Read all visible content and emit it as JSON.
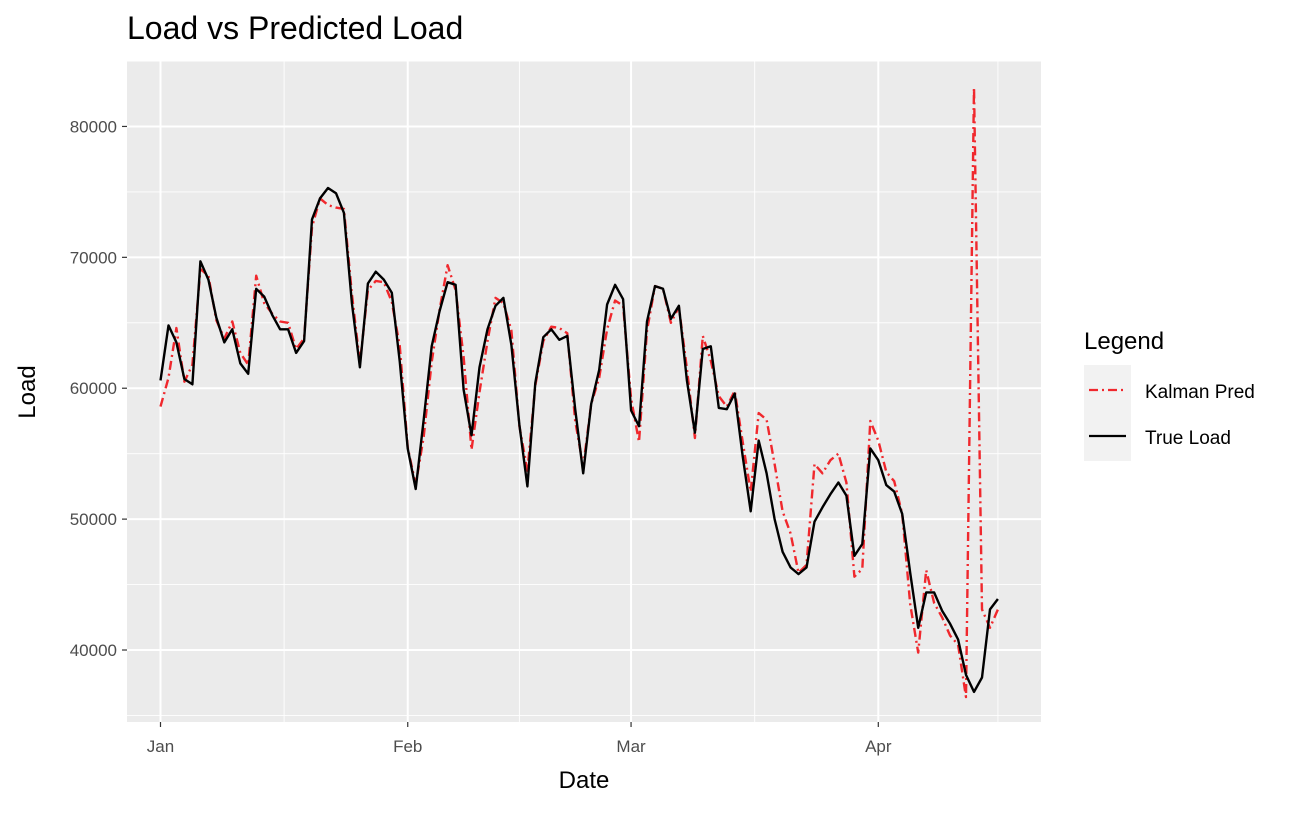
{
  "chart_data": {
    "type": "line",
    "title": "Load vs Predicted Load",
    "xlabel": "Date",
    "ylabel": "Load",
    "x_ticks": [
      "Jan",
      "Feb",
      "Mar",
      "Apr"
    ],
    "y_ticks": [
      40000,
      50000,
      60000,
      70000,
      80000
    ],
    "ylim": [
      34500,
      85000
    ],
    "legend": {
      "title": "Legend",
      "position": "right"
    },
    "grid": true,
    "series": [
      {
        "name": "Kalman Pred",
        "color": "#f0282d",
        "dash": "dashdot",
        "points": [
          [
            0,
            58600
          ],
          [
            1,
            60800
          ],
          [
            2,
            64600
          ],
          [
            3,
            60500
          ],
          [
            4,
            61800
          ],
          [
            5,
            69100
          ],
          [
            6,
            68600
          ],
          [
            7,
            65200
          ],
          [
            8,
            63800
          ],
          [
            9,
            65100
          ],
          [
            10,
            62700
          ],
          [
            11,
            61800
          ],
          [
            12,
            68600
          ],
          [
            13,
            66500
          ],
          [
            14,
            65700
          ],
          [
            15,
            65100
          ],
          [
            16,
            65000
          ],
          [
            17,
            63000
          ],
          [
            18,
            63800
          ],
          [
            19,
            72300
          ],
          [
            20,
            74500
          ],
          [
            21,
            74000
          ],
          [
            22,
            73800
          ],
          [
            23,
            73700
          ],
          [
            24,
            67200
          ],
          [
            25,
            61900
          ],
          [
            26,
            67500
          ],
          [
            27,
            68200
          ],
          [
            28,
            68100
          ],
          [
            29,
            66600
          ],
          [
            30,
            63200
          ],
          [
            31,
            55500
          ],
          [
            32,
            52600
          ],
          [
            33,
            56300
          ],
          [
            34,
            62000
          ],
          [
            35,
            66000
          ],
          [
            36,
            69400
          ],
          [
            37,
            67500
          ],
          [
            38,
            62400
          ],
          [
            39,
            55300
          ],
          [
            40,
            59700
          ],
          [
            41,
            63600
          ],
          [
            42,
            66900
          ],
          [
            43,
            66500
          ],
          [
            44,
            64400
          ],
          [
            45,
            57100
          ],
          [
            46,
            53700
          ],
          [
            47,
            60200
          ],
          [
            48,
            63600
          ],
          [
            49,
            64700
          ],
          [
            50,
            64600
          ],
          [
            51,
            64200
          ],
          [
            52,
            57500
          ],
          [
            53,
            54000
          ],
          [
            54,
            58800
          ],
          [
            55,
            60800
          ],
          [
            56,
            64500
          ],
          [
            57,
            66700
          ],
          [
            58,
            66300
          ],
          [
            59,
            59200
          ],
          [
            60,
            55900
          ],
          [
            61,
            64400
          ],
          [
            62,
            67800
          ],
          [
            63,
            67600
          ],
          [
            64,
            65000
          ],
          [
            65,
            66200
          ],
          [
            66,
            61500
          ],
          [
            67,
            56200
          ],
          [
            68,
            64000
          ],
          [
            69,
            62100
          ],
          [
            70,
            59400
          ],
          [
            71,
            58600
          ],
          [
            72,
            59800
          ],
          [
            73,
            55900
          ],
          [
            74,
            52100
          ],
          [
            75,
            58100
          ],
          [
            76,
            57600
          ],
          [
            77,
            54200
          ],
          [
            78,
            50600
          ],
          [
            79,
            48900
          ],
          [
            80,
            45900
          ],
          [
            81,
            46500
          ],
          [
            82,
            54200
          ],
          [
            83,
            53500
          ],
          [
            84,
            54500
          ],
          [
            85,
            55000
          ],
          [
            86,
            52800
          ],
          [
            87,
            45600
          ],
          [
            88,
            46200
          ],
          [
            89,
            57500
          ],
          [
            90,
            56000
          ],
          [
            91,
            53600
          ],
          [
            92,
            52900
          ],
          [
            93,
            50400
          ],
          [
            94,
            43500
          ],
          [
            95,
            39800
          ],
          [
            96,
            46100
          ],
          [
            97,
            43600
          ],
          [
            98,
            42500
          ],
          [
            99,
            41100
          ],
          [
            100,
            40400
          ],
          [
            101,
            36400
          ],
          [
            102,
            83000
          ],
          [
            103,
            43100
          ],
          [
            104,
            41700
          ],
          [
            105,
            43100
          ]
        ]
      },
      {
        "name": "True Load",
        "color": "#000000",
        "dash": "solid",
        "points": [
          [
            0,
            60600
          ],
          [
            1,
            64800
          ],
          [
            2,
            63500
          ],
          [
            3,
            60700
          ],
          [
            4,
            60300
          ],
          [
            5,
            69700
          ],
          [
            6,
            68300
          ],
          [
            7,
            65400
          ],
          [
            8,
            63500
          ],
          [
            9,
            64500
          ],
          [
            10,
            61900
          ],
          [
            11,
            61100
          ],
          [
            12,
            67600
          ],
          [
            13,
            67000
          ],
          [
            14,
            65600
          ],
          [
            15,
            64500
          ],
          [
            16,
            64500
          ],
          [
            17,
            62700
          ],
          [
            18,
            63600
          ],
          [
            19,
            72900
          ],
          [
            20,
            74500
          ],
          [
            21,
            75300
          ],
          [
            22,
            74900
          ],
          [
            23,
            73400
          ],
          [
            24,
            66500
          ],
          [
            25,
            61600
          ],
          [
            26,
            68000
          ],
          [
            27,
            68900
          ],
          [
            28,
            68300
          ],
          [
            29,
            67300
          ],
          [
            30,
            62000
          ],
          [
            31,
            55400
          ],
          [
            32,
            52300
          ],
          [
            33,
            57600
          ],
          [
            34,
            63200
          ],
          [
            35,
            65900
          ],
          [
            36,
            68100
          ],
          [
            37,
            67900
          ],
          [
            38,
            59900
          ],
          [
            39,
            56400
          ],
          [
            40,
            61600
          ],
          [
            41,
            64500
          ],
          [
            42,
            66300
          ],
          [
            43,
            66900
          ],
          [
            44,
            63300
          ],
          [
            45,
            57200
          ],
          [
            46,
            52500
          ],
          [
            47,
            60400
          ],
          [
            48,
            63900
          ],
          [
            49,
            64500
          ],
          [
            50,
            63700
          ],
          [
            51,
            64000
          ],
          [
            52,
            58400
          ],
          [
            53,
            53500
          ],
          [
            54,
            58800
          ],
          [
            55,
            61400
          ],
          [
            56,
            66400
          ],
          [
            57,
            67900
          ],
          [
            58,
            66800
          ],
          [
            59,
            58300
          ],
          [
            60,
            57100
          ],
          [
            61,
            65100
          ],
          [
            62,
            67800
          ],
          [
            63,
            67600
          ],
          [
            64,
            65300
          ],
          [
            65,
            66300
          ],
          [
            66,
            60600
          ],
          [
            67,
            56600
          ],
          [
            68,
            63000
          ],
          [
            69,
            63200
          ],
          [
            70,
            58500
          ],
          [
            71,
            58400
          ],
          [
            72,
            59600
          ],
          [
            73,
            54800
          ],
          [
            74,
            50600
          ],
          [
            75,
            56000
          ],
          [
            76,
            53500
          ],
          [
            77,
            50000
          ],
          [
            78,
            47500
          ],
          [
            79,
            46300
          ],
          [
            80,
            45800
          ],
          [
            81,
            46300
          ],
          [
            82,
            49800
          ],
          [
            83,
            50900
          ],
          [
            84,
            51900
          ],
          [
            85,
            52800
          ],
          [
            86,
            51800
          ],
          [
            87,
            47200
          ],
          [
            88,
            48100
          ],
          [
            89,
            55400
          ],
          [
            90,
            54500
          ],
          [
            91,
            52600
          ],
          [
            92,
            52100
          ],
          [
            93,
            50400
          ],
          [
            94,
            45900
          ],
          [
            95,
            41700
          ],
          [
            96,
            44400
          ],
          [
            97,
            44400
          ],
          [
            98,
            43000
          ],
          [
            99,
            42000
          ],
          [
            100,
            40800
          ],
          [
            101,
            38100
          ],
          [
            102,
            36800
          ],
          [
            103,
            37900
          ],
          [
            104,
            43100
          ],
          [
            105,
            43900
          ]
        ]
      }
    ]
  }
}
